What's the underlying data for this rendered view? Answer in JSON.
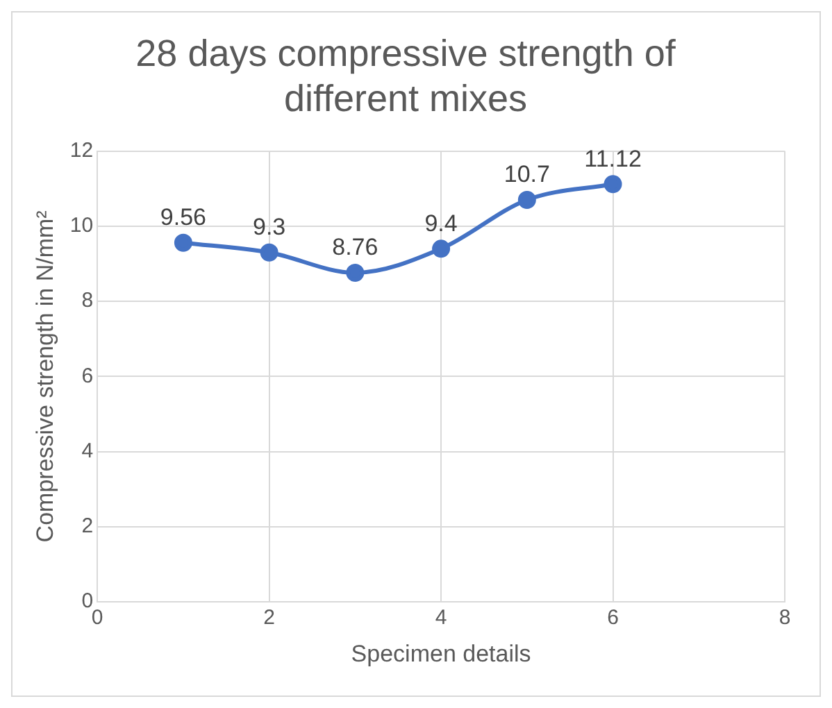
{
  "chart_data": {
    "type": "line",
    "title": "28 days compressive strength of different mixes",
    "xlabel": "Specimen details",
    "ylabel": "Compressive strength in N/mm²",
    "x": [
      1,
      2,
      3,
      4,
      5,
      6
    ],
    "series": [
      {
        "color": "#4472c4",
        "values": [
          9.56,
          9.3,
          8.76,
          9.4,
          10.7,
          11.12
        ]
      }
    ],
    "xlim": [
      0,
      8
    ],
    "xticks": [
      0,
      2,
      4,
      6,
      8
    ],
    "ylim": [
      0,
      12
    ],
    "yticks": [
      0,
      2,
      4,
      6,
      8,
      10,
      12
    ],
    "grid": true,
    "marker": "circle",
    "line_style": "solid",
    "data_labels": true,
    "legend": false
  }
}
